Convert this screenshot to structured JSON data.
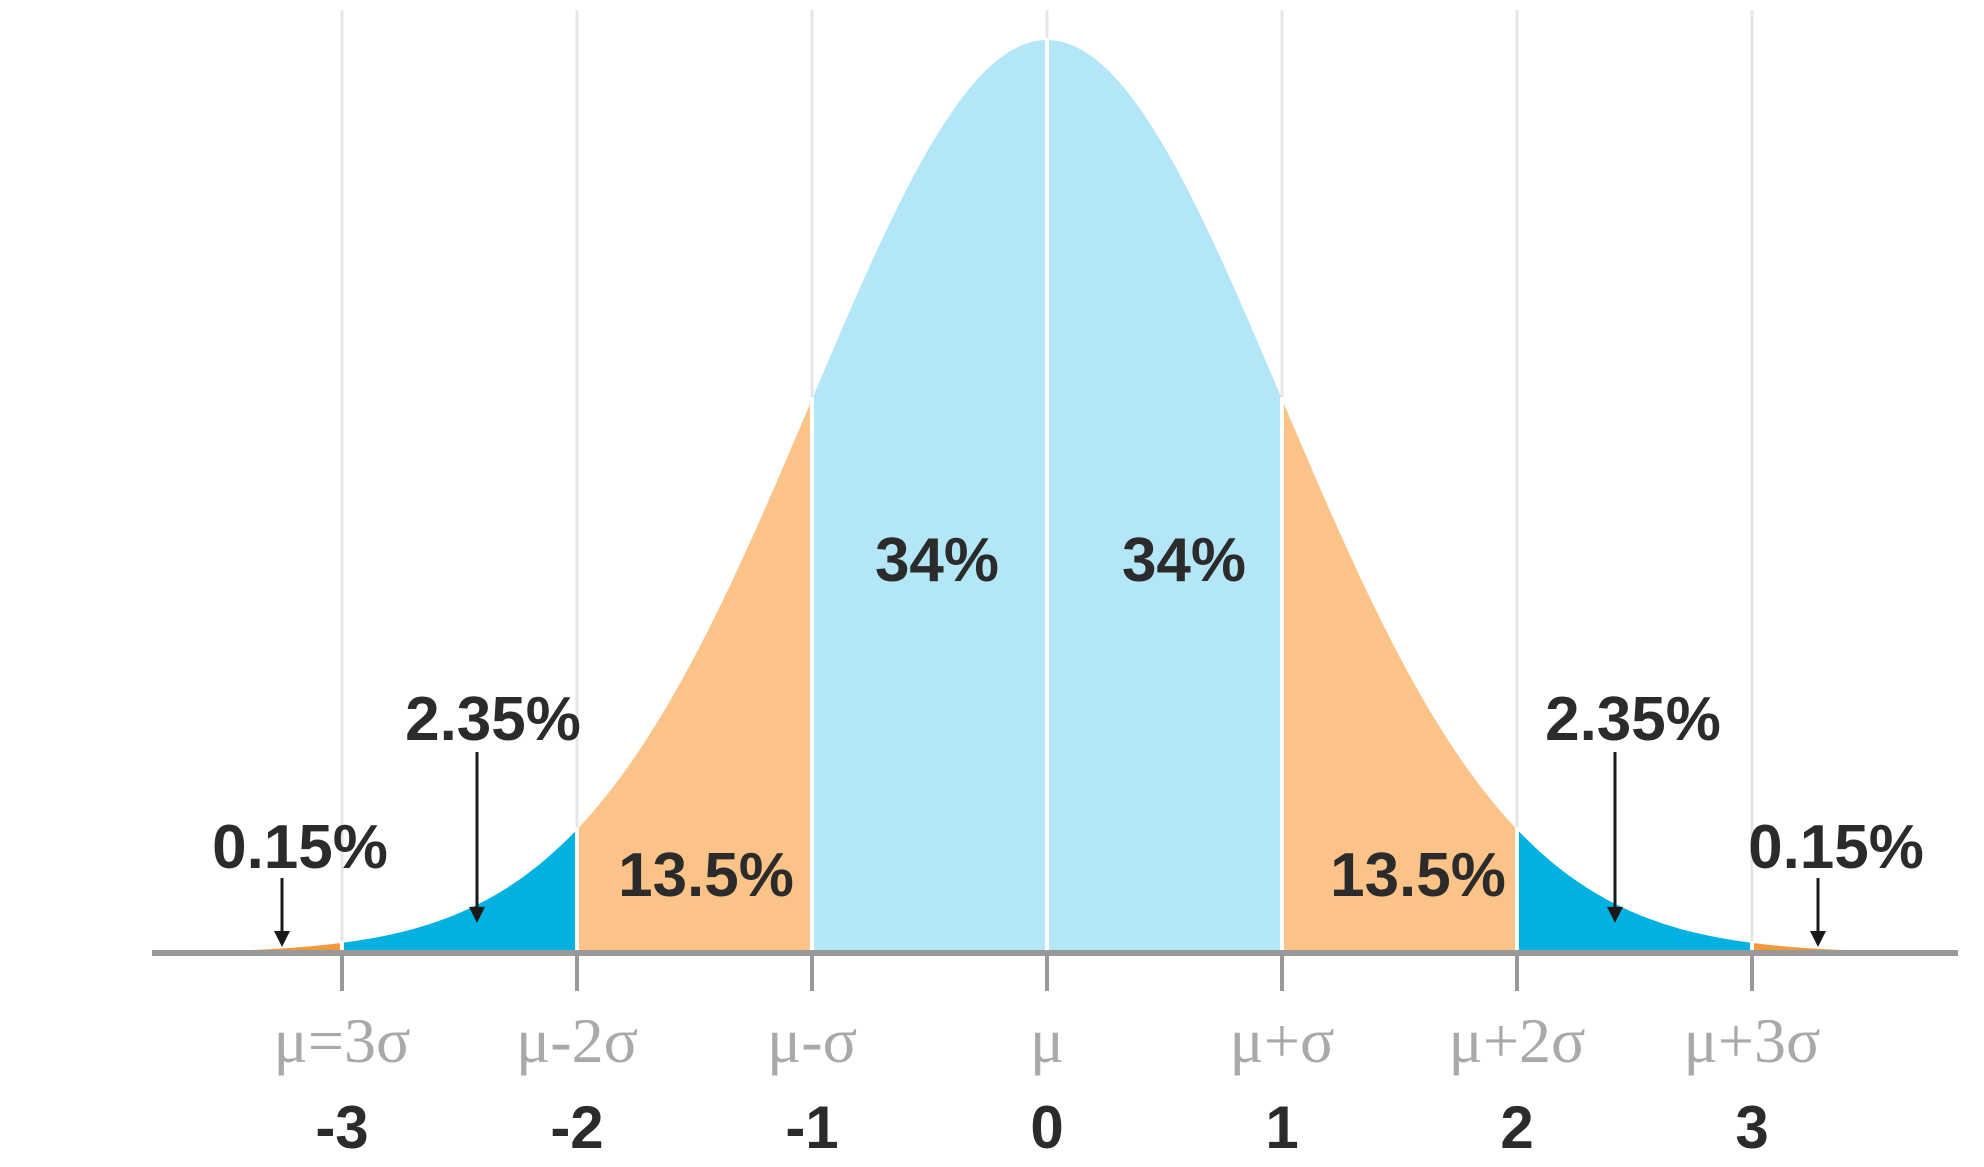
{
  "chart_data": {
    "type": "area",
    "title": "",
    "xlabel": "",
    "ylabel": "",
    "xlim": [
      -3.7,
      3.7
    ],
    "boundaries": [
      -3,
      -2,
      -1,
      0,
      1,
      2,
      3
    ],
    "tick_symbols": [
      "μ=3σ",
      "μ-2σ",
      "μ-σ",
      "μ",
      "μ+σ",
      "μ+2σ",
      "μ+3σ"
    ],
    "tick_values": [
      "-3",
      "-2",
      "-1",
      "0",
      "1",
      "2",
      "3"
    ],
    "regions": [
      {
        "from": -3.7,
        "to": -3,
        "percent": 0.15,
        "label": "0.15%",
        "color": "#f4983c"
      },
      {
        "from": -3,
        "to": -2,
        "percent": 2.35,
        "label": "2.35%",
        "color": "#00b1e1"
      },
      {
        "from": -2,
        "to": -1,
        "percent": 13.5,
        "label": "13.5%",
        "color": "#fbc388"
      },
      {
        "from": -1,
        "to": 0,
        "percent": 34,
        "label": "34%",
        "color": "#b3e7f7"
      },
      {
        "from": 0,
        "to": 1,
        "percent": 34,
        "label": "34%",
        "color": "#b3e7f7"
      },
      {
        "from": 1,
        "to": 2,
        "percent": 13.5,
        "label": "13.5%",
        "color": "#fbc388"
      },
      {
        "from": 2,
        "to": 3,
        "percent": 2.35,
        "label": "2.35%",
        "color": "#00b1e1"
      },
      {
        "from": 3,
        "to": 3.7,
        "percent": 0.15,
        "label": "0.15%",
        "color": "#f4983c"
      }
    ],
    "grid": true,
    "legend": "none",
    "colors": {
      "axis": "#999999",
      "grid": "#e6e6e6",
      "label_text": "#2b2b2b",
      "symbol_text": "#a9a9a9"
    }
  }
}
